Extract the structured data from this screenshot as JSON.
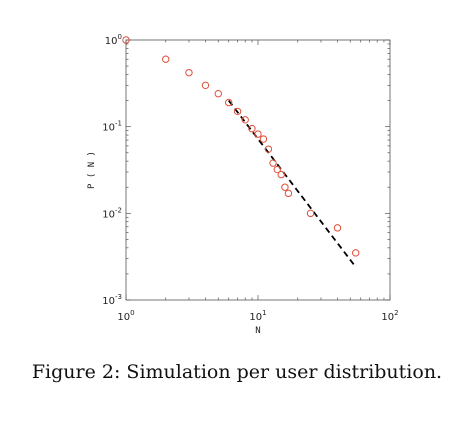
{
  "caption": "Figure 2: Simulation per user distribution.",
  "chart_data": {
    "type": "scatter",
    "title": "",
    "xlabel": "N",
    "ylabel": "P ( N )",
    "xscale": "log",
    "yscale": "log",
    "xlim": [
      1,
      100
    ],
    "ylim": [
      0.001,
      1
    ],
    "grid": false,
    "legend": "none",
    "x_ticks": [
      {
        "base": "10",
        "exp": "0"
      },
      {
        "base": "10",
        "exp": "1"
      },
      {
        "base": "10",
        "exp": "2"
      }
    ],
    "y_ticks": [
      {
        "base": "10",
        "exp": "-3"
      },
      {
        "base": "10",
        "exp": "-2"
      },
      {
        "base": "10",
        "exp": "-1"
      },
      {
        "base": "10",
        "exp": "0"
      }
    ],
    "series": [
      {
        "type": "scatter",
        "marker": "circle-open",
        "color": "#e0503a",
        "x": [
          1,
          2,
          3,
          4,
          5,
          6,
          7,
          8,
          9,
          10,
          11,
          12,
          13,
          14,
          15,
          16,
          17,
          25,
          40,
          55
        ],
        "y": [
          1.0,
          0.6,
          0.42,
          0.3,
          0.24,
          0.19,
          0.15,
          0.12,
          0.095,
          0.082,
          0.072,
          0.055,
          0.038,
          0.032,
          0.028,
          0.02,
          0.017,
          0.01,
          0.0068,
          0.0035
        ]
      },
      {
        "type": "line",
        "style": "dashed",
        "color": "#000000",
        "x": [
          6,
          55
        ],
        "y": [
          0.2,
          0.0024
        ]
      }
    ]
  }
}
